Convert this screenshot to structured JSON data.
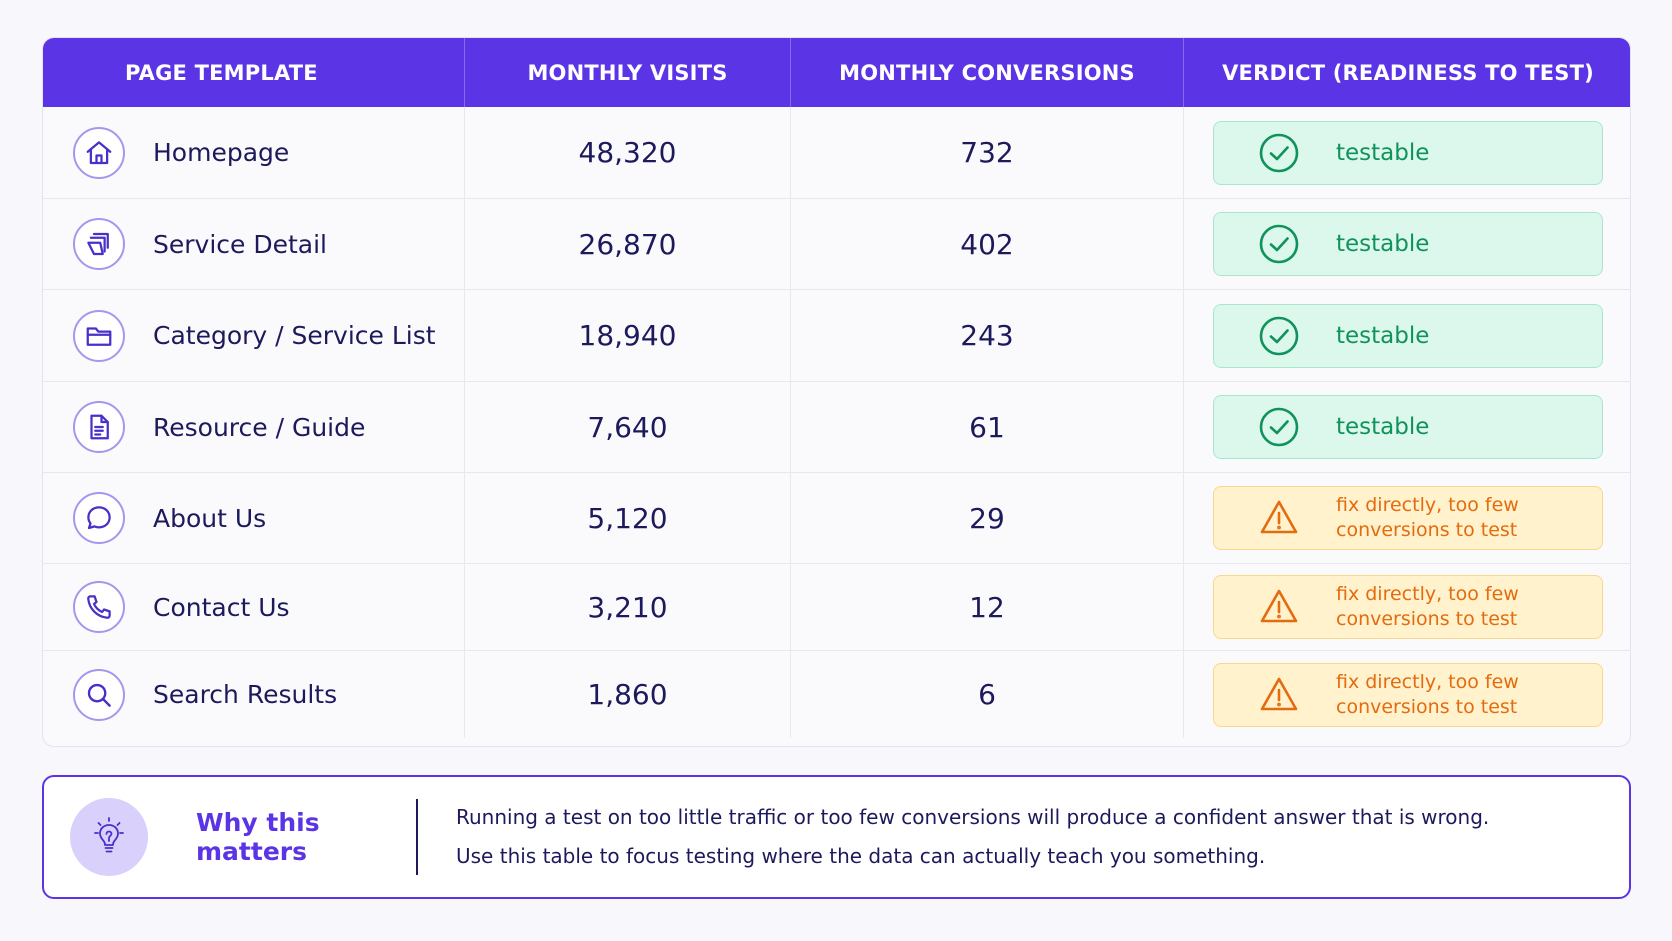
{
  "table": {
    "headers": {
      "page_template": "PAGE TEMPLATE",
      "monthly_visits": "MONTHLY VISITS",
      "monthly_conversions": "MONTHLY CONVERSIONS",
      "verdict": "VERDICT (READINESS TO TEST)"
    },
    "rows": [
      {
        "icon": "home-icon",
        "page": "Homepage",
        "visits": "48,320",
        "conversions": "732",
        "verdict": "testable",
        "status": "ok"
      },
      {
        "icon": "layers-icon",
        "page": "Service Detail",
        "visits": "26,870",
        "conversions": "402",
        "verdict": "testable",
        "status": "ok"
      },
      {
        "icon": "folder-icon",
        "page": "Category / Service List",
        "visits": "18,940",
        "conversions": "243",
        "verdict": "testable",
        "status": "ok"
      },
      {
        "icon": "document-icon",
        "page": "Resource / Guide",
        "visits": "7,640",
        "conversions": "61",
        "verdict": "testable",
        "status": "ok"
      },
      {
        "icon": "chat-bubble-icon",
        "page": "About Us",
        "visits": "5,120",
        "conversions": "29",
        "verdict": "fix directly, too few conversions to test",
        "status": "warn"
      },
      {
        "icon": "phone-icon",
        "page": "Contact Us",
        "visits": "3,210",
        "conversions": "12",
        "verdict": "fix directly, too few conversions to test",
        "status": "warn"
      },
      {
        "icon": "search-icon",
        "page": "Search Results",
        "visits": "1,860",
        "conversions": "6",
        "verdict": "fix directly, too few conversions to test",
        "status": "warn"
      }
    ]
  },
  "callout": {
    "icon": "lightbulb-icon",
    "title": "Why this matters",
    "line1": "Running a test on too little traffic or too few conversions will produce a confident answer that is wrong.",
    "line2": "Use this table to focus testing where the data can actually teach you something."
  },
  "colors": {
    "header_bg": "#5b34e6",
    "ok_text": "#10935a",
    "ok_bg": "#dcf7ec",
    "warn_text": "#e46b0e",
    "warn_bg": "#fff2cc"
  }
}
